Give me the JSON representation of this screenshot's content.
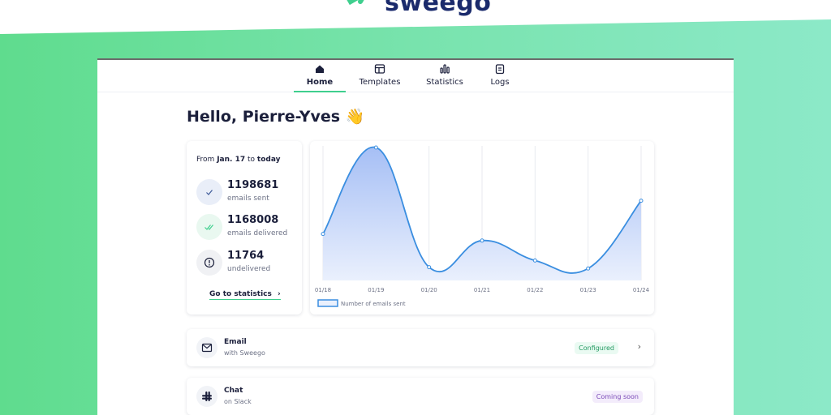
{
  "brand": {
    "name": "sweego"
  },
  "nav": {
    "tabs": [
      {
        "label": "Home",
        "icon": "home-icon",
        "active": true
      },
      {
        "label": "Templates",
        "icon": "template-icon",
        "active": false
      },
      {
        "label": "Statistics",
        "icon": "bar-chart-icon",
        "active": false
      },
      {
        "label": "Logs",
        "icon": "clipboard-icon",
        "active": false
      }
    ]
  },
  "greeting": "Hello, Pierre-Yves 👋",
  "summary": {
    "period_prefix": "From",
    "period_start": "Jan. 17",
    "period_mid": "to",
    "period_end": "today",
    "stats": [
      {
        "value": "1198681",
        "label": "emails sent",
        "icon": "check-icon"
      },
      {
        "value": "1168008",
        "label": "emails delivered",
        "icon": "double-check-icon"
      },
      {
        "value": "11764",
        "label": "undelivered",
        "icon": "alert-circle-icon"
      }
    ],
    "link_label": "Go to statistics"
  },
  "chart_data": {
    "type": "area",
    "x": [
      "01/18",
      "01/19",
      "01/20",
      "01/21",
      "01/22",
      "01/23",
      "01/24"
    ],
    "series": [
      {
        "name": "Number of emails sent",
        "values": [
          0.35,
          1.0,
          0.1,
          0.3,
          0.15,
          0.09,
          0.6
        ]
      }
    ],
    "ylim": [
      0,
      1
    ],
    "grid": "vertical",
    "legend": "bottom-left",
    "colors": {
      "line": "#3a8ee0",
      "fill_top": "#a6bff5",
      "fill_bottom": "#eaf0fd"
    }
  },
  "integrations": [
    {
      "title": "Email",
      "subtitle": "with Sweego",
      "status": "Configured",
      "icon": "mail-icon"
    },
    {
      "title": "Chat",
      "subtitle": "on Slack",
      "status": "Coming soon",
      "icon": "slack-icon"
    }
  ],
  "colors": {
    "accent": "#3fcf8e",
    "text": "#1b1f3b"
  }
}
